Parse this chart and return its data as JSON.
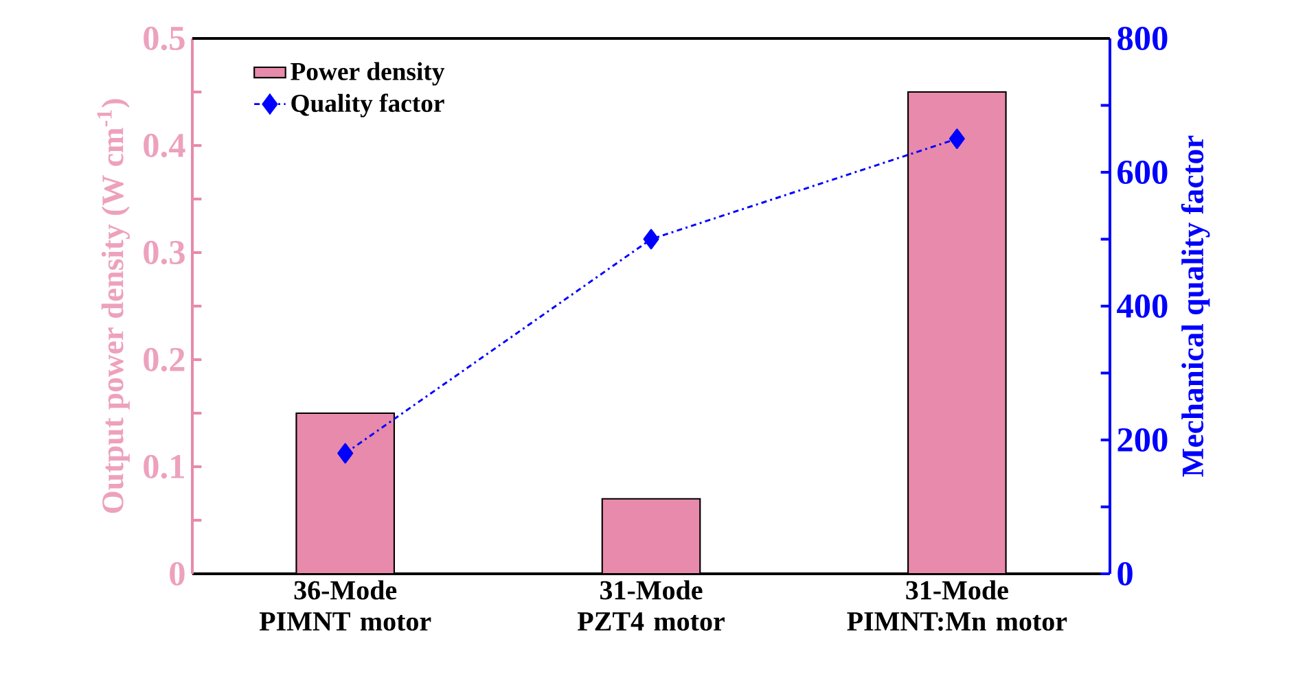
{
  "chart_data": {
    "type": "bar",
    "categories": [
      "36-Mode PIMNT motor",
      "31-Mode PZT4 motor",
      "31-Mode PIMNT:Mn motor"
    ],
    "ylabel": "Output power density (W cm$^{-1}$)",
    "y2label": "Mechanical quality factor",
    "series": [
      {
        "name": "Power density",
        "color": "#e88aab",
        "values": [
          0.15,
          0.07,
          0.45
        ]
      },
      {
        "name": "Quality factor",
        "type": "line",
        "axis": "y2",
        "color": "#0000ff",
        "values": [
          180,
          500,
          650
        ],
        "marker": "diamond",
        "line_style": "dashdot"
      }
    ],
    "ylim": [
      0,
      0.5
    ],
    "yticks": [
      0,
      {
        "value": 0.05,
        "label": null
      },
      0.1,
      {
        "value": 0.15,
        "label": null
      },
      0.2,
      {
        "value": 0.25,
        "label": null
      },
      0.3,
      {
        "value": 0.35,
        "label": null
      },
      0.4,
      {
        "value": 0.45,
        "label": null
      },
      0.5
    ],
    "y2lim": [
      0,
      800
    ],
    "y2ticks": [
      0,
      {
        "value": 100,
        "label": null
      },
      200,
      {
        "value": 300,
        "label": null
      },
      400,
      {
        "value": 500,
        "label": null
      },
      600,
      {
        "value": 700,
        "label": null
      },
      800
    ],
    "legend": "top left"
  }
}
